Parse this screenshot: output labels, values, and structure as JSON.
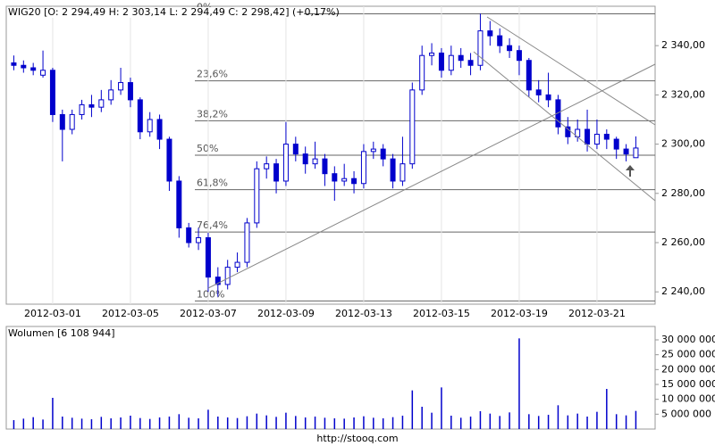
{
  "chart_data": [
    {
      "type": "candlestick",
      "title": "WIG20 [O: 2 294,49  H: 2 303,14  L: 2 294,49  C: 2 298,42] (+0,17%)",
      "up_color": "#ffffff",
      "down_color": "#0000cc",
      "outline_color": "#0000cc",
      "categories": [
        null,
        null,
        null,
        null,
        "2012-03-01",
        null,
        null,
        null,
        null,
        null,
        null,
        null,
        "2012-03-05",
        null,
        null,
        null,
        null,
        null,
        null,
        null,
        "2012-03-07",
        null,
        null,
        null,
        null,
        null,
        null,
        null,
        "2012-03-09",
        null,
        null,
        null,
        null,
        null,
        null,
        null,
        "2012-03-13",
        null,
        null,
        null,
        null,
        null,
        null,
        null,
        "2012-03-15",
        null,
        null,
        null,
        null,
        null,
        null,
        null,
        "2012-03-19",
        null,
        null,
        null,
        null,
        null,
        null,
        null,
        "2012-03-21",
        null,
        null,
        null,
        null
      ],
      "ohlc": [
        [
          2333,
          2336,
          2330,
          2332
        ],
        [
          2332,
          2334,
          2329,
          2331
        ],
        [
          2331,
          2333,
          2328,
          2330
        ],
        [
          2328,
          2338,
          2327,
          2330
        ],
        [
          2330,
          2331,
          2309,
          2312
        ],
        [
          2312,
          2314,
          2293,
          2306
        ],
        [
          2306,
          2314,
          2304,
          2312
        ],
        [
          2312,
          2318,
          2310,
          2316
        ],
        [
          2316,
          2320,
          2311,
          2315
        ],
        [
          2315,
          2322,
          2313,
          2318
        ],
        [
          2318,
          2326,
          2316,
          2322
        ],
        [
          2322,
          2331,
          2320,
          2325
        ],
        [
          2325,
          2327,
          2315,
          2318
        ],
        [
          2318,
          2319,
          2302,
          2305
        ],
        [
          2305,
          2313,
          2303,
          2310
        ],
        [
          2310,
          2312,
          2298,
          2302
        ],
        [
          2302,
          2303,
          2281,
          2285
        ],
        [
          2285,
          2287,
          2262,
          2266
        ],
        [
          2266,
          2268,
          2258,
          2260
        ],
        [
          2260,
          2266,
          2257,
          2262
        ],
        [
          2262,
          2264,
          2240,
          2246
        ],
        [
          2246,
          2250,
          2238,
          2243
        ],
        [
          2243,
          2253,
          2241,
          2250
        ],
        [
          2250,
          2256,
          2248,
          2252
        ],
        [
          2252,
          2270,
          2250,
          2268
        ],
        [
          2268,
          2293,
          2266,
          2290
        ],
        [
          2290,
          2295,
          2286,
          2292
        ],
        [
          2292,
          2294,
          2280,
          2285
        ],
        [
          2285,
          2309,
          2283,
          2300
        ],
        [
          2300,
          2303,
          2293,
          2296
        ],
        [
          2296,
          2299,
          2288,
          2292
        ],
        [
          2292,
          2301,
          2290,
          2294
        ],
        [
          2294,
          2296,
          2283,
          2288
        ],
        [
          2288,
          2291,
          2277,
          2285
        ],
        [
          2285,
          2292,
          2283,
          2286
        ],
        [
          2286,
          2289,
          2280,
          2284
        ],
        [
          2284,
          2300,
          2282,
          2297
        ],
        [
          2297,
          2301,
          2294,
          2298
        ],
        [
          2298,
          2300,
          2291,
          2294
        ],
        [
          2294,
          2296,
          2282,
          2285
        ],
        [
          2285,
          2303,
          2283,
          2292
        ],
        [
          2292,
          2325,
          2290,
          2322
        ],
        [
          2322,
          2340,
          2320,
          2336
        ],
        [
          2336,
          2341,
          2332,
          2337
        ],
        [
          2337,
          2339,
          2327,
          2330
        ],
        [
          2330,
          2340,
          2328,
          2336
        ],
        [
          2336,
          2339,
          2331,
          2334
        ],
        [
          2334,
          2337,
          2328,
          2332
        ],
        [
          2332,
          2353,
          2330,
          2346
        ],
        [
          2346,
          2350,
          2340,
          2344
        ],
        [
          2344,
          2347,
          2337,
          2340
        ],
        [
          2340,
          2343,
          2335,
          2338
        ],
        [
          2338,
          2340,
          2328,
          2334
        ],
        [
          2334,
          2335,
          2319,
          2322
        ],
        [
          2322,
          2326,
          2317,
          2320
        ],
        [
          2320,
          2329,
          2315,
          2318
        ],
        [
          2318,
          2320,
          2304,
          2307
        ],
        [
          2307,
          2311,
          2300,
          2303
        ],
        [
          2303,
          2310,
          2301,
          2306
        ],
        [
          2306,
          2314,
          2297,
          2300
        ],
        [
          2300,
          2310,
          2298,
          2304
        ],
        [
          2304,
          2306,
          2298,
          2302
        ],
        [
          2302,
          2303,
          2294,
          2298
        ],
        [
          2298,
          2300,
          2293,
          2296
        ],
        [
          2294.49,
          2303.14,
          2294.49,
          2298.42
        ]
      ],
      "ylim": [
        2235,
        2356
      ],
      "yticks": [
        {
          "value": 2240,
          "label": "2 240,00"
        },
        {
          "value": 2260,
          "label": "2 260,00"
        },
        {
          "value": 2280,
          "label": "2 280,00"
        },
        {
          "value": 2300,
          "label": "2 300,00"
        },
        {
          "value": 2320,
          "label": "2 320,00"
        },
        {
          "value": 2340,
          "label": "2 340,00"
        }
      ],
      "fib_levels": [
        {
          "label": "0%",
          "price": 2352.9
        },
        {
          "label": "23,6%",
          "price": 2325.7
        },
        {
          "label": "38,2%",
          "price": 2309.5
        },
        {
          "label": "50%",
          "price": 2295.5
        },
        {
          "label": "61,8%",
          "price": 2281.5
        },
        {
          "label": "76,4%",
          "price": 2264.3
        },
        {
          "label": "100%",
          "price": 2236.3
        }
      ],
      "grid": true
    },
    {
      "type": "bar",
      "title": "Wolumen [6 108 944]",
      "color": "#0000cc",
      "values": [
        3000000,
        3500000,
        4000000,
        3200000,
        10500000,
        4200000,
        3800000,
        3500000,
        3300000,
        4100000,
        3600000,
        3900000,
        4500000,
        3700000,
        3400000,
        3900000,
        4200000,
        5000000,
        3800000,
        3600000,
        6500000,
        4200000,
        3900000,
        3700000,
        4300000,
        5200000,
        4600000,
        4100000,
        5500000,
        4400000,
        3900000,
        4200000,
        3800000,
        3600000,
        3500000,
        3900000,
        4300000,
        3800000,
        3600000,
        4000000,
        4500000,
        13000000,
        7500000,
        5500000,
        14000000,
        4500000,
        3800000,
        4200000,
        6000000,
        5200000,
        4400000,
        5600000,
        30500000,
        5000000,
        4400000,
        4800000,
        8000000,
        4600000,
        5200000,
        4200000,
        5800000,
        13500000,
        5000000,
        4600000,
        6100000
      ],
      "ylim": [
        0,
        34500000
      ],
      "yticks": [
        {
          "value": 5000000,
          "label": "5 000 000"
        },
        {
          "value": 10000000,
          "label": "10 000 000"
        },
        {
          "value": 15000000,
          "label": "15 000 000"
        },
        {
          "value": 20000000,
          "label": "20 000 000"
        },
        {
          "value": 25000000,
          "label": "25 000 000"
        },
        {
          "value": 30000000,
          "label": "30 000 000"
        }
      ],
      "grid": false
    }
  ],
  "footer": "http://stooq.com"
}
